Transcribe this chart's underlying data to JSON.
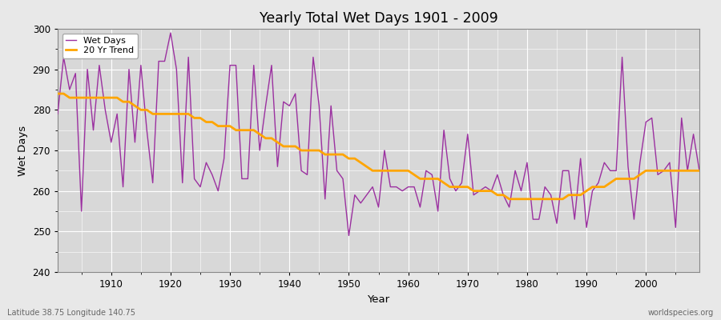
{
  "title": "Yearly Total Wet Days 1901 - 2009",
  "xlabel": "Year",
  "ylabel": "Wet Days",
  "ylim": [
    240,
    300
  ],
  "xlim": [
    1901,
    2009
  ],
  "yticks": [
    240,
    250,
    260,
    270,
    280,
    290,
    300
  ],
  "xticks": [
    1910,
    1920,
    1930,
    1940,
    1950,
    1960,
    1970,
    1980,
    1990,
    2000
  ],
  "wet_days_color": "#9B30A0",
  "trend_color": "#FFA500",
  "bg_color": "#E8E8E8",
  "plot_bg_color": "#D8D8D8",
  "grid_color": "#FFFFFF",
  "subtitle_left": "Latitude 38.75 Longitude 140.75",
  "subtitle_right": "worldspecies.org",
  "legend_labels": [
    "Wet Days",
    "20 Yr Trend"
  ],
  "years": [
    1901,
    1902,
    1903,
    1904,
    1905,
    1906,
    1907,
    1908,
    1909,
    1910,
    1911,
    1912,
    1913,
    1914,
    1915,
    1916,
    1917,
    1918,
    1919,
    1920,
    1921,
    1922,
    1923,
    1924,
    1925,
    1926,
    1927,
    1928,
    1929,
    1930,
    1931,
    1932,
    1933,
    1934,
    1935,
    1936,
    1937,
    1938,
    1939,
    1940,
    1941,
    1942,
    1943,
    1944,
    1945,
    1946,
    1947,
    1948,
    1949,
    1950,
    1951,
    1952,
    1953,
    1954,
    1955,
    1956,
    1957,
    1958,
    1959,
    1960,
    1961,
    1962,
    1963,
    1964,
    1965,
    1966,
    1967,
    1968,
    1969,
    1970,
    1971,
    1972,
    1973,
    1974,
    1975,
    1976,
    1977,
    1978,
    1979,
    1980,
    1981,
    1982,
    1983,
    1984,
    1985,
    1986,
    1987,
    1988,
    1989,
    1990,
    1991,
    1992,
    1993,
    1994,
    1995,
    1996,
    1997,
    1998,
    1999,
    2000,
    2001,
    2002,
    2003,
    2004,
    2005,
    2006,
    2007,
    2008,
    2009
  ],
  "wet_days": [
    279,
    293,
    285,
    289,
    255,
    290,
    275,
    291,
    280,
    272,
    279,
    261,
    290,
    272,
    291,
    275,
    262,
    292,
    292,
    299,
    290,
    262,
    293,
    263,
    261,
    267,
    264,
    260,
    268,
    291,
    291,
    263,
    263,
    291,
    270,
    281,
    291,
    266,
    282,
    281,
    284,
    265,
    264,
    293,
    281,
    258,
    281,
    265,
    263,
    249,
    259,
    257,
    259,
    261,
    256,
    270,
    261,
    261,
    260,
    261,
    261,
    256,
    265,
    264,
    255,
    275,
    263,
    260,
    262,
    274,
    259,
    260,
    261,
    260,
    264,
    259,
    256,
    265,
    260,
    267,
    253,
    253,
    261,
    259,
    252,
    265,
    265,
    253,
    268,
    251,
    260,
    262,
    267,
    265,
    265,
    293,
    266,
    253,
    267,
    277,
    278,
    264,
    265,
    267,
    251,
    278,
    265,
    274,
    265
  ],
  "trend_years": [
    1901,
    1902,
    1903,
    1904,
    1905,
    1906,
    1907,
    1908,
    1909,
    1910,
    1911,
    1912,
    1913,
    1914,
    1915,
    1916,
    1917,
    1918,
    1919,
    1920,
    1921,
    1922,
    1923,
    1924,
    1925,
    1926,
    1927,
    1928,
    1929,
    1930,
    1931,
    1932,
    1933,
    1934,
    1935,
    1936,
    1937,
    1938,
    1939,
    1940,
    1941,
    1942,
    1943,
    1944,
    1945,
    1946,
    1947,
    1948,
    1949,
    1950,
    1951,
    1952,
    1953,
    1954,
    1955,
    1956,
    1957,
    1958,
    1959,
    1960,
    1961,
    1962,
    1963,
    1964,
    1965,
    1966,
    1967,
    1968,
    1969,
    1970,
    1971,
    1972,
    1973,
    1974,
    1975,
    1976,
    1977,
    1978,
    1979,
    1980,
    1981,
    1982,
    1983,
    1984,
    1985,
    1986,
    1987,
    1988,
    1989,
    1990,
    1991,
    1992,
    1993,
    1994,
    1995,
    1996,
    1997,
    1998,
    1999,
    2000,
    2001,
    2002,
    2003,
    2004,
    2005,
    2006,
    2007,
    2008,
    2009
  ],
  "trend_values": [
    284,
    284,
    283,
    283,
    283,
    283,
    283,
    283,
    283,
    283,
    283,
    282,
    282,
    281,
    280,
    280,
    279,
    279,
    279,
    279,
    279,
    279,
    279,
    278,
    278,
    277,
    277,
    276,
    276,
    276,
    275,
    275,
    275,
    275,
    274,
    273,
    273,
    272,
    271,
    271,
    271,
    270,
    270,
    270,
    270,
    269,
    269,
    269,
    269,
    268,
    268,
    267,
    266,
    265,
    265,
    265,
    265,
    265,
    265,
    265,
    264,
    263,
    263,
    263,
    263,
    262,
    261,
    261,
    261,
    261,
    260,
    260,
    260,
    260,
    259,
    259,
    258,
    258,
    258,
    258,
    258,
    258,
    258,
    258,
    258,
    258,
    259,
    259,
    259,
    260,
    261,
    261,
    261,
    262,
    263,
    263,
    263,
    263,
    264,
    265,
    265,
    265,
    265,
    265,
    265,
    265,
    265,
    265,
    265
  ]
}
